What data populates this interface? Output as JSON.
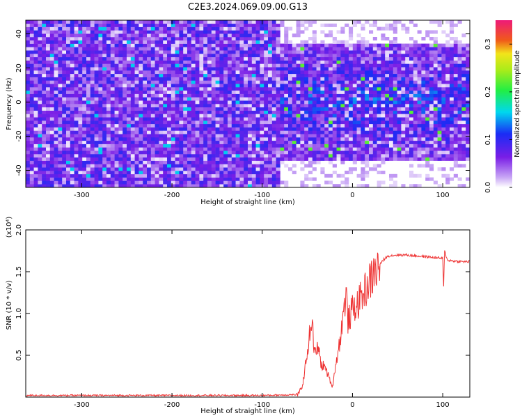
{
  "title": "C2E3.2024.069.09.00.G13",
  "chart_data": [
    {
      "type": "heatmap",
      "xlabel": "Height of straight line (km)",
      "ylabel": "Frequency (Hz)",
      "xlim": [
        -362,
        130
      ],
      "ylim": [
        -50,
        48
      ],
      "x_ticks": [
        "-300",
        "-200",
        "-100",
        "0",
        "100"
      ],
      "y_ticks": [
        "40",
        "20",
        "0",
        "-20",
        "-40"
      ],
      "colorbar": {
        "label": "Normalized spectral amplitude",
        "range": [
          0.0,
          0.35
        ],
        "ticks": [
          "0.0",
          "0.1",
          "0.2",
          "0.3"
        ],
        "colormap": "rainbow (white-violet-blue-cyan-green-yellow-red-magenta)"
      },
      "regions": [
        {
          "x_range": [
            -362,
            -80
          ],
          "freq_range": [
            -50,
            48
          ],
          "typical_amplitude": 0.07,
          "description_level": "broadband"
        },
        {
          "x_range": [
            -80,
            130
          ],
          "freq_range": [
            -35,
            35
          ],
          "typical_amplitude": 0.1,
          "description_level": "concentrated near 0 Hz"
        }
      ],
      "grid": false
    },
    {
      "type": "line",
      "xlabel": "Height of straight line (km)",
      "ylabel": "SNR (10 * v/v)",
      "y_multiplier": "(x10⁴)",
      "xlim": [
        -362,
        130
      ],
      "ylim": [
        0,
        2.0
      ],
      "x_ticks": [
        "-300",
        "-200",
        "-100",
        "0",
        "100"
      ],
      "y_ticks": [
        "2.0",
        "1.5",
        "1.0",
        "0.5"
      ],
      "series": [
        {
          "color": "#ee3333",
          "x": [
            -362,
            -300,
            -200,
            -100,
            -60,
            -55,
            -50,
            -45,
            -42,
            -38,
            -35,
            -30,
            -25,
            -22,
            -20,
            -15,
            -10,
            -7,
            -5,
            0,
            5,
            10,
            15,
            20,
            25,
            30,
            35,
            40,
            50,
            60,
            70,
            80,
            90,
            100,
            101,
            102,
            105,
            110,
            120,
            130
          ],
          "y": [
            0.02,
            0.02,
            0.02,
            0.02,
            0.03,
            0.15,
            0.55,
            0.95,
            0.5,
            0.6,
            0.4,
            0.35,
            0.2,
            0.12,
            0.3,
            0.6,
            1.0,
            1.25,
            0.9,
            1.05,
            1.1,
            1.2,
            1.3,
            1.4,
            1.5,
            1.58,
            1.65,
            1.69,
            1.7,
            1.7,
            1.69,
            1.68,
            1.67,
            1.66,
            1.3,
            1.75,
            1.64,
            1.63,
            1.62,
            1.62
          ]
        }
      ],
      "grid": false
    }
  ]
}
